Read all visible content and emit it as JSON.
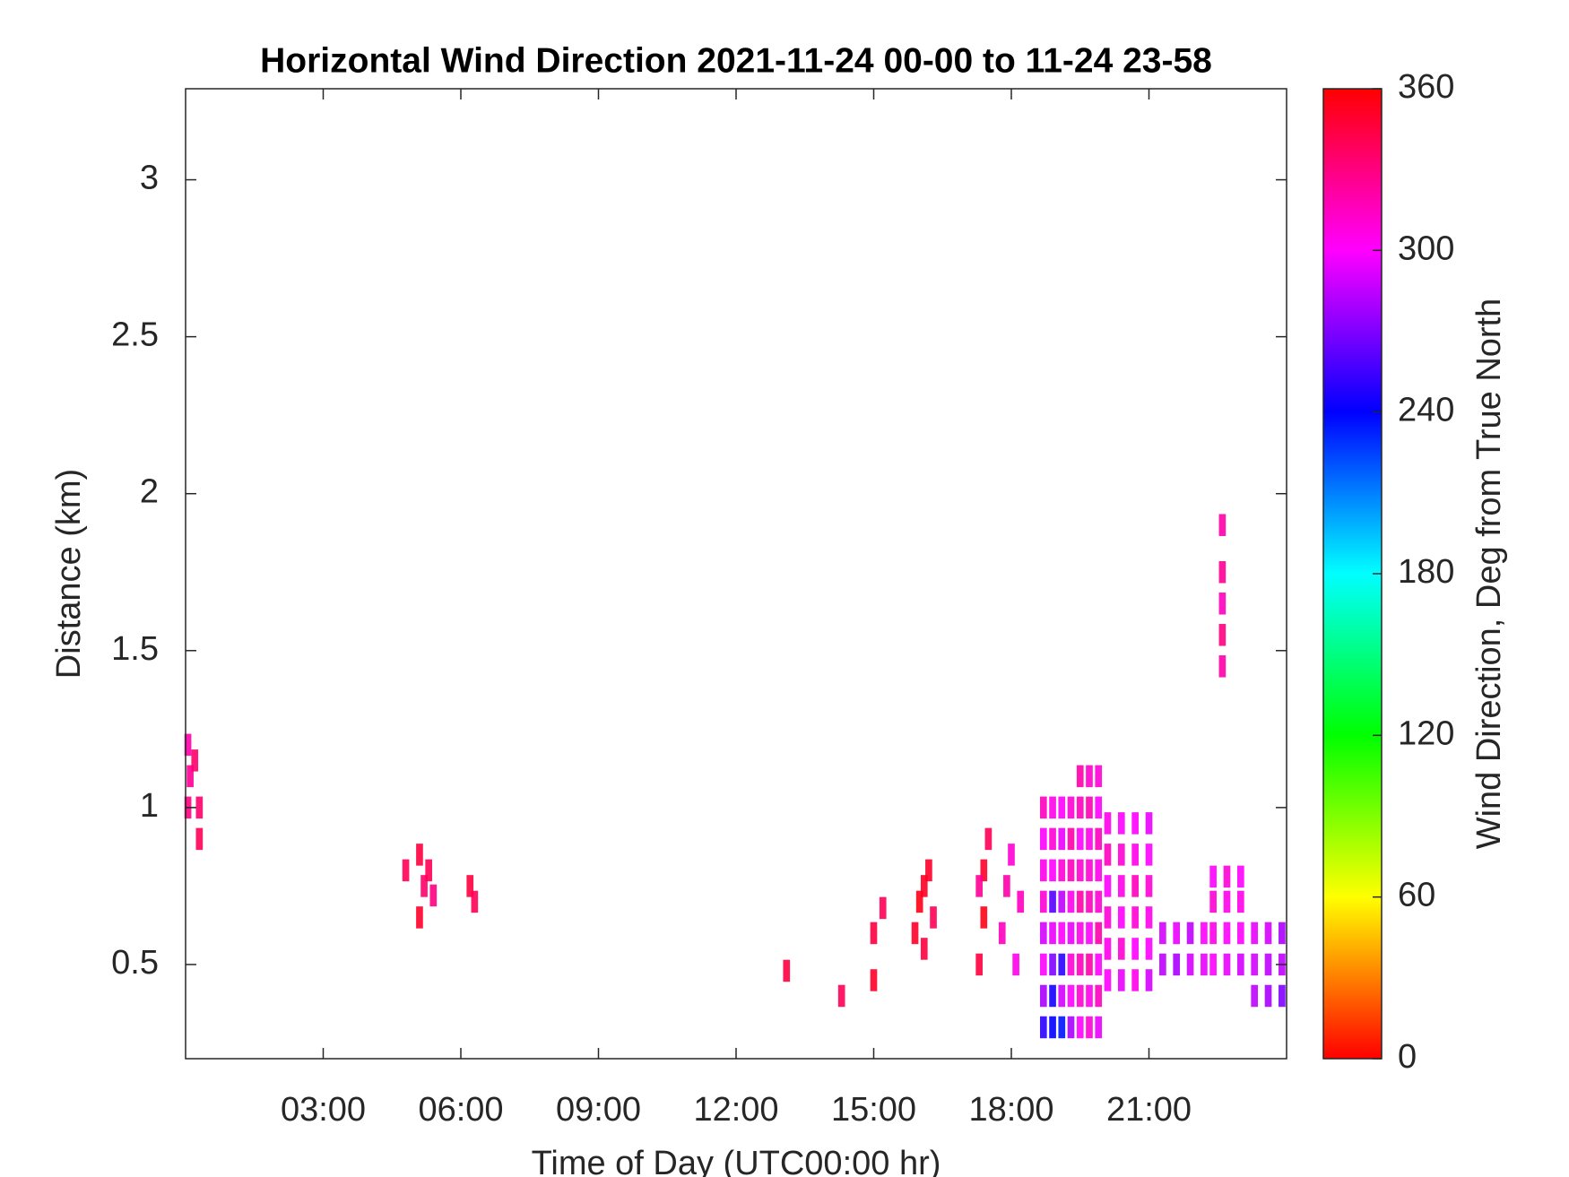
{
  "chart_data": {
    "type": "heatmap",
    "title": "Horizontal Wind Direction 2021-11-24 00-00 to 11-24 23-58",
    "x_label": "Time of Day (UTC00:00 hr)",
    "y_label": "Distance (km)",
    "xlim": [
      0,
      24
    ],
    "ylim": [
      0.2,
      3.29
    ],
    "xticks": [
      {
        "value": 3,
        "label": "03:00"
      },
      {
        "value": 6,
        "label": "06:00"
      },
      {
        "value": 9,
        "label": "09:00"
      },
      {
        "value": 12,
        "label": "12:00"
      },
      {
        "value": 15,
        "label": "15:00"
      },
      {
        "value": 18,
        "label": "18:00"
      },
      {
        "value": 21,
        "label": "21:00"
      }
    ],
    "yticks": [
      0.5,
      1,
      1.5,
      2,
      2.5,
      3
    ],
    "colormap": "hsv",
    "colorbar": {
      "label": "Wind Direction, Deg from True North",
      "lim": [
        0,
        360
      ],
      "ticks": [
        0,
        60,
        120,
        180,
        240,
        300,
        360
      ]
    },
    "x": [
      0.05,
      0.05,
      0.1,
      0.2,
      0.3,
      0.3,
      4.8,
      5.1,
      5.2,
      5.3,
      5.1,
      5.4,
      6.2,
      6.3,
      13.1,
      14.3,
      15.0,
      15.0,
      15.2,
      15.9,
      16.0,
      16.1,
      16.2,
      16.3,
      16.1,
      17.3,
      17.4,
      17.4,
      17.5,
      17.3,
      17.8,
      17.9,
      18.0,
      18.1,
      18.2,
      18.7,
      18.7,
      18.7,
      18.7,
      18.7,
      18.7,
      18.7,
      18.7,
      18.9,
      18.9,
      18.9,
      18.9,
      18.9,
      18.9,
      18.9,
      18.9,
      19.1,
      19.1,
      19.1,
      19.1,
      19.1,
      19.1,
      19.1,
      19.1,
      19.3,
      19.3,
      19.3,
      19.3,
      19.3,
      19.3,
      19.3,
      19.3,
      19.5,
      19.5,
      19.5,
      19.5,
      19.5,
      19.5,
      19.5,
      19.5,
      19.5,
      19.7,
      19.7,
      19.7,
      19.7,
      19.7,
      19.7,
      19.7,
      19.7,
      19.7,
      19.9,
      19.9,
      19.9,
      19.9,
      19.9,
      19.9,
      19.9,
      19.9,
      19.9,
      20.1,
      20.1,
      20.1,
      20.1,
      20.1,
      20.1,
      20.4,
      20.4,
      20.4,
      20.4,
      20.4,
      20.4,
      20.7,
      20.7,
      20.7,
      20.7,
      20.7,
      20.7,
      21.0,
      21.0,
      21.0,
      21.0,
      21.0,
      21.0,
      21.3,
      21.3,
      21.6,
      21.6,
      21.9,
      21.9,
      22.2,
      22.2,
      22.4,
      22.4,
      22.4,
      22.4,
      22.7,
      22.7,
      22.7,
      22.7,
      23.0,
      23.0,
      23.0,
      23.0,
      23.3,
      23.3,
      23.3,
      23.6,
      23.6,
      23.6,
      23.9,
      23.9,
      23.9,
      22.6,
      22.6,
      22.6,
      22.6,
      22.6
    ],
    "y": [
      1.2,
      1.0,
      1.1,
      1.15,
      0.9,
      1.0,
      0.8,
      0.85,
      0.75,
      0.8,
      0.65,
      0.72,
      0.75,
      0.7,
      0.48,
      0.4,
      0.45,
      0.6,
      0.68,
      0.6,
      0.7,
      0.55,
      0.8,
      0.65,
      0.75,
      0.5,
      0.65,
      0.8,
      0.9,
      0.75,
      0.6,
      0.75,
      0.85,
      0.5,
      0.7,
      0.3,
      0.4,
      0.5,
      0.6,
      0.7,
      0.8,
      0.9,
      1.0,
      0.3,
      0.4,
      0.5,
      0.6,
      0.7,
      0.8,
      0.9,
      1.0,
      0.3,
      0.4,
      0.5,
      0.6,
      0.7,
      0.8,
      0.9,
      1.0,
      0.3,
      0.4,
      0.5,
      0.6,
      0.7,
      0.8,
      0.9,
      1.0,
      0.3,
      0.4,
      0.5,
      0.6,
      0.7,
      0.8,
      0.9,
      1.0,
      1.1,
      0.3,
      0.4,
      0.5,
      0.6,
      0.7,
      0.8,
      0.9,
      1.0,
      1.1,
      0.3,
      0.4,
      0.5,
      0.6,
      0.7,
      0.8,
      0.9,
      1.0,
      1.1,
      0.45,
      0.55,
      0.65,
      0.75,
      0.85,
      0.95,
      0.45,
      0.55,
      0.65,
      0.75,
      0.85,
      0.95,
      0.45,
      0.55,
      0.65,
      0.75,
      0.85,
      0.95,
      0.45,
      0.55,
      0.65,
      0.75,
      0.85,
      0.95,
      0.5,
      0.6,
      0.5,
      0.6,
      0.5,
      0.6,
      0.5,
      0.6,
      0.5,
      0.6,
      0.7,
      0.78,
      0.5,
      0.6,
      0.7,
      0.78,
      0.5,
      0.6,
      0.7,
      0.78,
      0.4,
      0.5,
      0.6,
      0.4,
      0.5,
      0.6,
      0.4,
      0.5,
      0.6,
      1.45,
      1.55,
      1.65,
      1.75,
      1.9
    ],
    "values": [
      320,
      330,
      325,
      335,
      340,
      335,
      340,
      345,
      335,
      340,
      350,
      330,
      345,
      340,
      345,
      340,
      350,
      345,
      340,
      350,
      355,
      345,
      350,
      340,
      352,
      345,
      355,
      350,
      340,
      325,
      315,
      320,
      310,
      305,
      315,
      250,
      280,
      300,
      290,
      310,
      305,
      300,
      315,
      240,
      245,
      270,
      295,
      260,
      300,
      310,
      305,
      235,
      290,
      250,
      300,
      285,
      310,
      295,
      300,
      280,
      300,
      310,
      295,
      305,
      315,
      320,
      310,
      300,
      310,
      315,
      305,
      320,
      310,
      300,
      315,
      320,
      310,
      305,
      320,
      300,
      315,
      310,
      305,
      318,
      312,
      295,
      315,
      300,
      320,
      310,
      305,
      315,
      300,
      310,
      300,
      305,
      310,
      300,
      315,
      305,
      295,
      310,
      300,
      305,
      310,
      300,
      305,
      300,
      310,
      315,
      305,
      300,
      290,
      300,
      305,
      310,
      300,
      295,
      285,
      290,
      280,
      295,
      290,
      285,
      295,
      300,
      300,
      305,
      310,
      300,
      295,
      300,
      305,
      310,
      290,
      300,
      305,
      300,
      285,
      290,
      295,
      280,
      285,
      290,
      270,
      285,
      280,
      320,
      330,
      315,
      325,
      320
    ]
  }
}
